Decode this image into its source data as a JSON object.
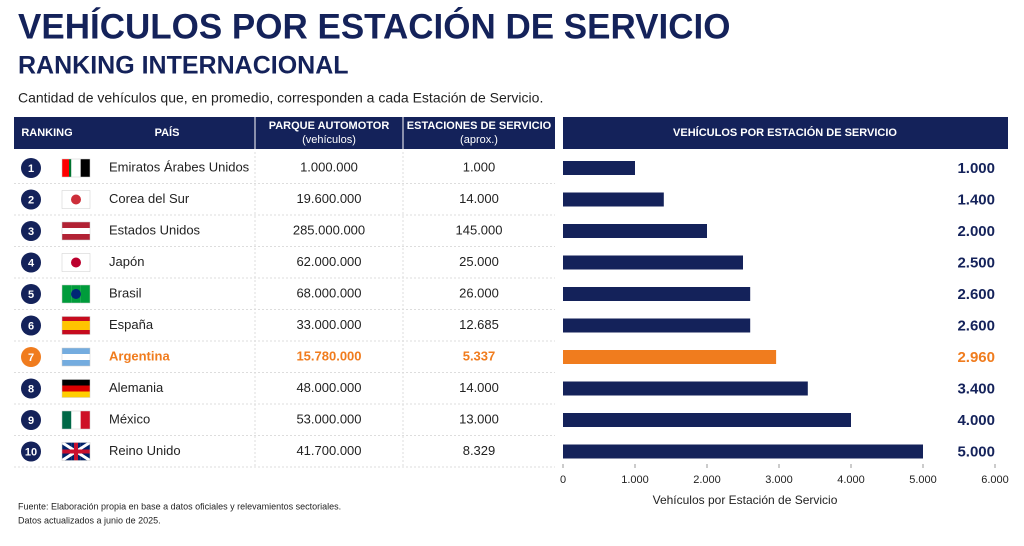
{
  "header": {
    "title": "VEHÍCULOS POR ESTACIÓN DE SERVICIO",
    "subtitle": "RANKING INTERNACIONAL",
    "description": "Cantidad de vehículos que, en promedio, corresponden a cada Estación de Servicio."
  },
  "table": {
    "columns": [
      {
        "title": "RANKING"
      },
      {
        "title": "PAÍS"
      },
      {
        "title": "PARQUE AUTOMOTOR",
        "subtitle": "(vehículos)"
      },
      {
        "title": "ESTACIONES DE SERVICIO",
        "subtitle": "(aprox.)"
      }
    ],
    "rows": [
      [
        "1",
        "Emiratos Árabes Unidos",
        "1.000.000",
        "1.000"
      ],
      [
        "2",
        "Corea del Sur",
        "19.600.000",
        "14.000"
      ],
      [
        "3",
        "Estados Unidos",
        "285.000.000",
        "145.000"
      ],
      [
        "4",
        "Japón",
        "62.000.000",
        "25.000"
      ],
      [
        "5",
        "Brasil",
        "68.000.000",
        "26.000"
      ],
      [
        "6",
        "España",
        "33.000.000",
        "12.685"
      ],
      [
        "7",
        "Argentina",
        "15.780.000",
        "5.337"
      ],
      [
        "8",
        "Alemania",
        "48.000.000",
        "14.000"
      ],
      [
        "9",
        "México",
        "53.000.000",
        "13.000"
      ],
      [
        "10",
        "Reino Unido",
        "41.700.000",
        "8.329"
      ]
    ]
  },
  "chart_data": {
    "type": "bar",
    "orientation": "horizontal",
    "title": "VEHÍCULOS POR ESTACIÓN DE SERVICIO",
    "x_label": "Vehículos por Estación de Servicio",
    "values": [
      1000,
      1400,
      2000,
      2500,
      2600,
      2600,
      2960,
      3400,
      4000,
      5000
    ],
    "value_labels": [
      "1.000",
      "1.400",
      "2.000",
      "2.500",
      "2.600",
      "2.600",
      "2.960",
      "3.400",
      "4.000",
      "5.000"
    ],
    "color": "#14225a",
    "highlight": {
      "index": 6,
      "color": "#f07c1e"
    },
    "xlim": [
      0,
      6000
    ],
    "xticks": [
      0,
      {
        "value": 1000,
        "label": "1.000"
      },
      {
        "value": 2000,
        "label": "2.000"
      },
      {
        "value": 3000,
        "label": "3.000"
      },
      {
        "value": 4000,
        "label": "4.000"
      },
      {
        "value": 5000,
        "label": "5.000"
      },
      {
        "value": 6000,
        "label": "6.000"
      }
    ]
  },
  "footer": {
    "source": "Fuente: Elaboración propia en base a datos oficiales y relevamientos sectoriales.",
    "note": "Datos actualizados a junio de 2025."
  }
}
